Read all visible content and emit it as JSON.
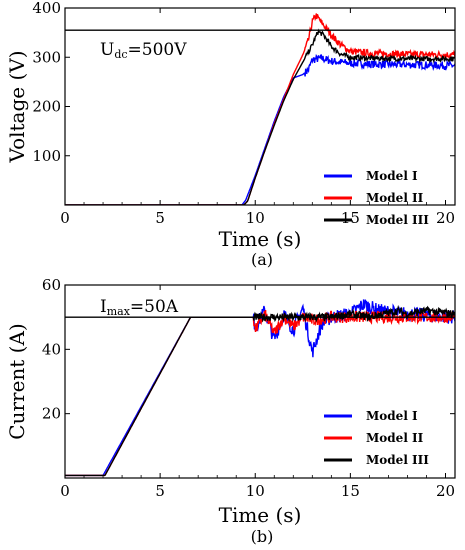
{
  "chart_data": [
    {
      "type": "line",
      "panel_label": "(a)",
      "xlabel": "Time (s)",
      "ylabel": "Voltage (V)",
      "xlim": [
        0,
        20.5
      ],
      "ylim": [
        0,
        400
      ],
      "xticks": [
        "0",
        "5",
        "10",
        "15",
        "20"
      ],
      "yticks": [
        "100",
        "200",
        "300",
        "400"
      ],
      "annotation": {
        "main": "U",
        "sub": "dc",
        "rest": "=500V"
      },
      "reference_line": 355,
      "legend_position": "lower-right",
      "series": [
        {
          "name": "Model I",
          "color": "#0000ff",
          "x": [
            0,
            9.3,
            9.5,
            10.0,
            10.5,
            11.0,
            11.5,
            12.0,
            12.5,
            12.8,
            13.0,
            13.5,
            14.0,
            15.0,
            16.0,
            18.0,
            20.5
          ],
          "y": [
            0,
            0,
            10,
            60,
            115,
            170,
            220,
            258,
            265,
            275,
            295,
            298,
            292,
            288,
            286,
            285,
            283
          ]
        },
        {
          "name": "Model II",
          "color": "#ff0000",
          "x": [
            0,
            9.4,
            9.6,
            10.0,
            10.5,
            11.0,
            11.5,
            12.0,
            12.5,
            12.8,
            13.0,
            13.2,
            13.5,
            14.0,
            14.5,
            15.0,
            16.0,
            18.0,
            20.5
          ],
          "y": [
            0,
            0,
            8,
            55,
            110,
            165,
            215,
            265,
            305,
            335,
            372,
            385,
            370,
            345,
            325,
            312,
            308,
            306,
            305
          ]
        },
        {
          "name": "Model III",
          "color": "#000000",
          "x": [
            0,
            9.4,
            9.6,
            10.0,
            10.5,
            11.0,
            11.5,
            12.0,
            12.5,
            13.0,
            13.3,
            13.6,
            14.0,
            14.5,
            15.0,
            16.0,
            18.0,
            20.5
          ],
          "y": [
            0,
            0,
            8,
            55,
            110,
            162,
            212,
            255,
            290,
            325,
            352,
            345,
            322,
            306,
            300,
            298,
            297,
            297
          ]
        }
      ]
    },
    {
      "type": "line",
      "panel_label": "(b)",
      "xlabel": "Time (s)",
      "ylabel": "Current (A)",
      "xlim": [
        0,
        20.5
      ],
      "ylim": [
        0,
        60
      ],
      "xticks": [
        "0",
        "5",
        "10",
        "15",
        "20"
      ],
      "yticks": [
        "20",
        "40",
        "60"
      ],
      "annotation": {
        "main": "I",
        "sub": "max",
        "rest": "=50A"
      },
      "reference_line": 50,
      "legend_position": "lower-right",
      "series": [
        {
          "name": "Model I",
          "color": "#0000ff",
          "x": [
            0,
            2.0,
            6.6,
            9.9,
            10.0,
            10.5,
            11.0,
            11.5,
            12.0,
            12.5,
            13.0,
            13.5,
            14.0,
            15.0,
            15.7,
            16.5,
            18.0,
            20.5
          ],
          "y": [
            0.8,
            0.8,
            50,
            50,
            47,
            52,
            43,
            51,
            46,
            53,
            39,
            48,
            50,
            51,
            54,
            52,
            51,
            50
          ]
        },
        {
          "name": "Model II",
          "color": "#ff0000",
          "x": [
            0,
            2.1,
            6.6,
            9.9,
            10.0,
            10.5,
            11.0,
            11.5,
            12.0,
            12.5,
            13.0,
            14.0,
            15.0,
            16.0,
            18.0,
            20.5
          ],
          "y": [
            0.8,
            0.8,
            50,
            50,
            46,
            51,
            45,
            50,
            47,
            50,
            49,
            50,
            50,
            50,
            50,
            50
          ]
        },
        {
          "name": "Model III",
          "color": "#000000",
          "x": [
            0,
            2.1,
            6.6,
            10.0,
            12.0,
            13.0,
            14.0,
            15.0,
            16.0,
            17.5,
            18.0,
            19.0,
            20.5
          ],
          "y": [
            0.8,
            0.8,
            50,
            50,
            50,
            50,
            50,
            51,
            50,
            52,
            51,
            52,
            51
          ]
        }
      ]
    }
  ]
}
